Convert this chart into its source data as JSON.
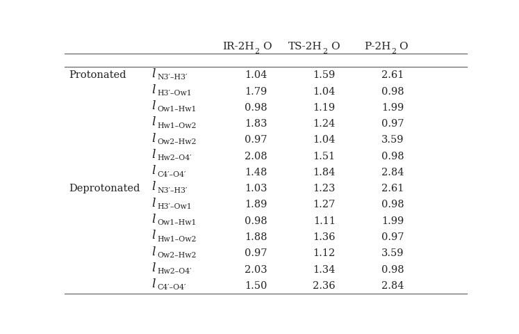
{
  "sections": [
    {
      "label": "Protonated",
      "rows": [
        {
          "label_sub": "N3′–H3′",
          "values": [
            "1.04",
            "1.59",
            "2.61"
          ]
        },
        {
          "label_sub": "H3′–Ow1",
          "values": [
            "1.79",
            "1.04",
            "0.98"
          ]
        },
        {
          "label_sub": "Ow1–Hw1",
          "values": [
            "0.98",
            "1.19",
            "1.99"
          ]
        },
        {
          "label_sub": "Hw1–Ow2",
          "values": [
            "1.83",
            "1.24",
            "0.97"
          ]
        },
        {
          "label_sub": "Ow2–Hw2",
          "values": [
            "0.97",
            "1.04",
            "3.59"
          ]
        },
        {
          "label_sub": "Hw2–O4′",
          "values": [
            "2.08",
            "1.51",
            "0.98"
          ]
        },
        {
          "label_sub": "C4′–O4′",
          "values": [
            "1.48",
            "1.84",
            "2.84"
          ]
        }
      ]
    },
    {
      "label": "Deprotonated",
      "rows": [
        {
          "label_sub": "N3′–H3′",
          "values": [
            "1.03",
            "1.23",
            "2.61"
          ]
        },
        {
          "label_sub": "H3′–Ow1",
          "values": [
            "1.89",
            "1.27",
            "0.98"
          ]
        },
        {
          "label_sub": "Ow1–Hw1",
          "values": [
            "0.98",
            "1.11",
            "1.99"
          ]
        },
        {
          "label_sub": "Hw1–Ow2",
          "values": [
            "1.88",
            "1.36",
            "0.97"
          ]
        },
        {
          "label_sub": "Ow2–Hw2",
          "values": [
            "0.97",
            "1.12",
            "3.59"
          ]
        },
        {
          "label_sub": "Hw2–O4′",
          "values": [
            "2.03",
            "1.34",
            "0.98"
          ]
        },
        {
          "label_sub": "C4′–O4′",
          "values": [
            "1.50",
            "2.36",
            "2.84"
          ]
        }
      ]
    }
  ],
  "col_headers": [
    [
      "IR‑2H",
      "2",
      "O"
    ],
    [
      "TS‑2H",
      "2",
      "O"
    ],
    [
      "P‑2H",
      "2",
      "O"
    ]
  ],
  "text_color": "#222222",
  "line_color": "#666666",
  "fontsize_header": 11,
  "fontsize_body": 10.5,
  "fontsize_sub": 7.8,
  "fig_width": 7.47,
  "fig_height": 4.81
}
